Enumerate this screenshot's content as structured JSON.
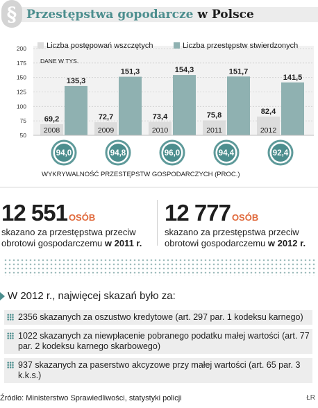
{
  "header": {
    "section_glyph": "§",
    "title_part1": "Przestępstwa gopodarcze",
    "title_part2": "w Polsce"
  },
  "chart_data": {
    "type": "bar",
    "unit_note": "DANE W TYS.",
    "categories": [
      "2008",
      "2009",
      "2010",
      "2011",
      "2012"
    ],
    "series": [
      {
        "name": "Liczba postępowań wszczętych",
        "values": [
          69.2,
          72.7,
          73.4,
          75.8,
          82.4
        ],
        "color": "#dcdcdc"
      },
      {
        "name": "Liczba przestępstw stwierdzonych",
        "values": [
          135.3,
          151.3,
          154.3,
          151.7,
          141.5
        ],
        "color": "#8fb1b1"
      }
    ],
    "value_labels": [
      [
        "69,2",
        "72,7",
        "73,4",
        "75,8",
        "82,4"
      ],
      [
        "135,3",
        "151,3",
        "154,3",
        "151,7",
        "141,5"
      ]
    ],
    "yticks": [
      "50",
      "75",
      "100",
      "125",
      "150",
      "175",
      "200"
    ],
    "ylim": [
      50,
      200
    ],
    "grid": true,
    "legend": "top",
    "detection": {
      "label": "WYKRYWALNOŚĆ PRZESTĘPSTW GOSPODARCZYCH (PROC.)",
      "values": [
        94.0,
        94.8,
        96.0,
        94.4,
        92.4
      ],
      "labels": [
        "94,0",
        "94,8",
        "96,0",
        "94,4",
        "92,4"
      ]
    }
  },
  "stats": [
    {
      "number": "12 551",
      "unit": "OSÓB",
      "line1": "skazano za przestępstwa przeciw",
      "line2": "obrotowi gospodarczemu",
      "year": "w 2011 r."
    },
    {
      "number": "12 777",
      "unit": "OSÓB",
      "line1": "skazano za przestępstwa przeciw",
      "line2": "obrotowi gospodarczemu",
      "year": "w 2012 r."
    }
  ],
  "list": {
    "heading": "W 2012 r., najwięcej skazań było za:",
    "items": [
      {
        "text": "2356 skazanych za oszustwo kredytowe (art. 297 par. 1 kodeksu karnego)"
      },
      {
        "text": "1022 skazanych za niewpłacenie pobranego podatku małej wartości (art. 77 par. 2 kodeksu karnego skarbowego)"
      },
      {
        "text": "937 skazanych za paserstwo akcyzowe przy małej wartości (art. 65 par. 3 k.k.s.)"
      }
    ]
  },
  "footer": {
    "source": "Źródło: Ministerstwo Sprawiedliwości, statystyki policji",
    "credit": "ŁR"
  },
  "colors": {
    "accent": "#4c8e8e",
    "bar_light": "#dcdcdc",
    "bar_dark": "#8fb1b1",
    "unit_orange": "#e0683a"
  }
}
